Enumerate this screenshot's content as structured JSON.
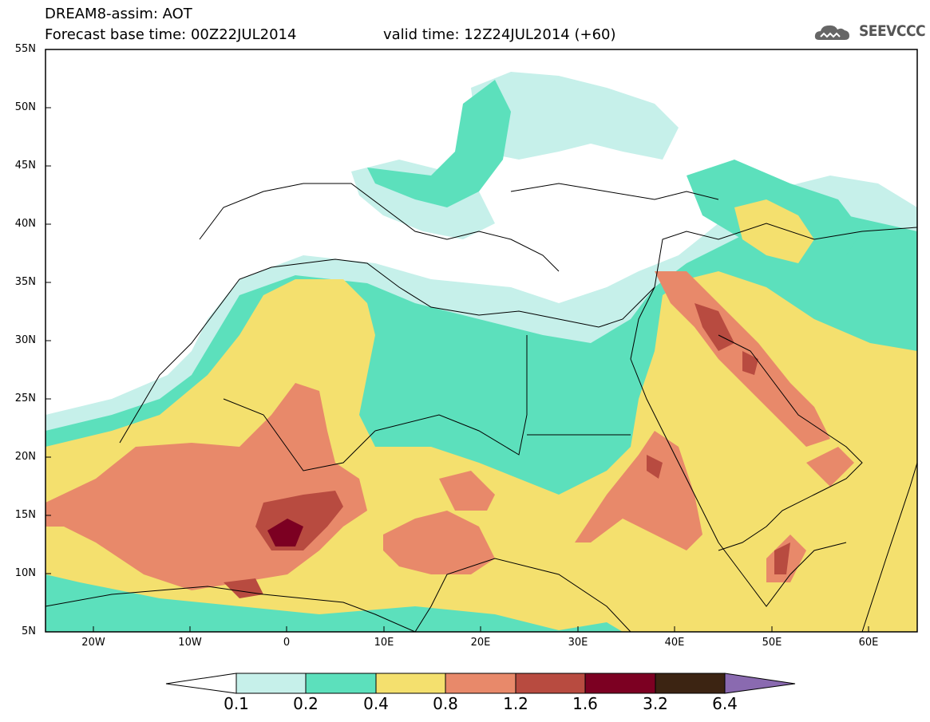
{
  "header": {
    "title_line1": "DREAM8-assim: AOT",
    "title_line2": "Forecast base time: 00Z22JUL2014",
    "valid_time": "valid time: 12Z24JUL2014 (+60)",
    "logo_text": "SEEVCCC"
  },
  "axes": {
    "lat_labels": [
      "55N",
      "50N",
      "45N",
      "40N",
      "35N",
      "30N",
      "25N",
      "20N",
      "15N",
      "10N",
      "5N"
    ],
    "lon_labels": [
      "20W",
      "10W",
      "0",
      "10E",
      "20E",
      "30E",
      "40E",
      "50E",
      "60E"
    ]
  },
  "colorbar": {
    "labels": [
      "0.1",
      "0.2",
      "0.4",
      "0.8",
      "1.2",
      "1.6",
      "3.2",
      "6.4"
    ],
    "colors": [
      "#c6f0ea",
      "#5ce0bc",
      "#f4e06e",
      "#e8896a",
      "#b84b40",
      "#7c0022",
      "#3c2412",
      "#8a6ab0"
    ]
  }
}
